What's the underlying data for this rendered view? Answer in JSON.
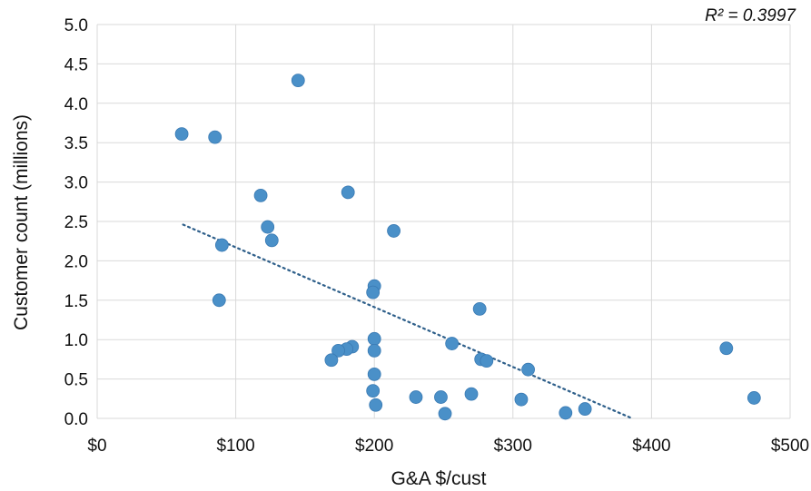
{
  "chart_data": {
    "type": "scatter",
    "title": "",
    "xlabel": "G&A $/cust",
    "ylabel": "Customer count (millions)",
    "xlim": [
      0,
      500
    ],
    "ylim": [
      0,
      5
    ],
    "x_ticks": [
      0,
      100,
      200,
      300,
      400,
      500
    ],
    "x_tick_labels": [
      "$0",
      "$100",
      "$200",
      "$300",
      "$400",
      "$500"
    ],
    "y_ticks": [
      0,
      0.5,
      1,
      1.5,
      2,
      2.5,
      3,
      3.5,
      4,
      4.5,
      5
    ],
    "y_tick_labels": [
      "0.0",
      "0.5",
      "1.0",
      "1.5",
      "2.0",
      "2.5",
      "3.0",
      "3.5",
      "4.0",
      "4.5",
      "5.0"
    ],
    "grid": true,
    "annotation": "R² = 0.3997",
    "trendline": {
      "type": "linear",
      "style": "dotted",
      "points": [
        [
          62,
          2.46
        ],
        [
          386,
          0.0
        ]
      ]
    },
    "colors": {
      "point": "#4a90c8",
      "trendline": "#2e5f8a",
      "grid": "#d9d9d9"
    },
    "points": [
      {
        "x": 61,
        "y": 3.61
      },
      {
        "x": 85,
        "y": 3.57
      },
      {
        "x": 145,
        "y": 4.29
      },
      {
        "x": 118,
        "y": 2.83
      },
      {
        "x": 123,
        "y": 2.43
      },
      {
        "x": 126,
        "y": 2.26
      },
      {
        "x": 90,
        "y": 2.2
      },
      {
        "x": 88,
        "y": 1.5
      },
      {
        "x": 181,
        "y": 2.87
      },
      {
        "x": 214,
        "y": 2.38
      },
      {
        "x": 200,
        "y": 1.68
      },
      {
        "x": 199,
        "y": 1.6
      },
      {
        "x": 276,
        "y": 1.39
      },
      {
        "x": 200,
        "y": 1.01
      },
      {
        "x": 200,
        "y": 0.86
      },
      {
        "x": 184,
        "y": 0.91
      },
      {
        "x": 180,
        "y": 0.88
      },
      {
        "x": 174,
        "y": 0.86
      },
      {
        "x": 169,
        "y": 0.74
      },
      {
        "x": 200,
        "y": 0.56
      },
      {
        "x": 199,
        "y": 0.35
      },
      {
        "x": 201,
        "y": 0.17
      },
      {
        "x": 230,
        "y": 0.27
      },
      {
        "x": 248,
        "y": 0.27
      },
      {
        "x": 251,
        "y": 0.06
      },
      {
        "x": 256,
        "y": 0.95
      },
      {
        "x": 270,
        "y": 0.31
      },
      {
        "x": 277,
        "y": 0.75
      },
      {
        "x": 281,
        "y": 0.73
      },
      {
        "x": 306,
        "y": 0.24
      },
      {
        "x": 311,
        "y": 0.62
      },
      {
        "x": 338,
        "y": 0.07
      },
      {
        "x": 352,
        "y": 0.12
      },
      {
        "x": 454,
        "y": 0.89
      },
      {
        "x": 474,
        "y": 0.26
      }
    ]
  }
}
